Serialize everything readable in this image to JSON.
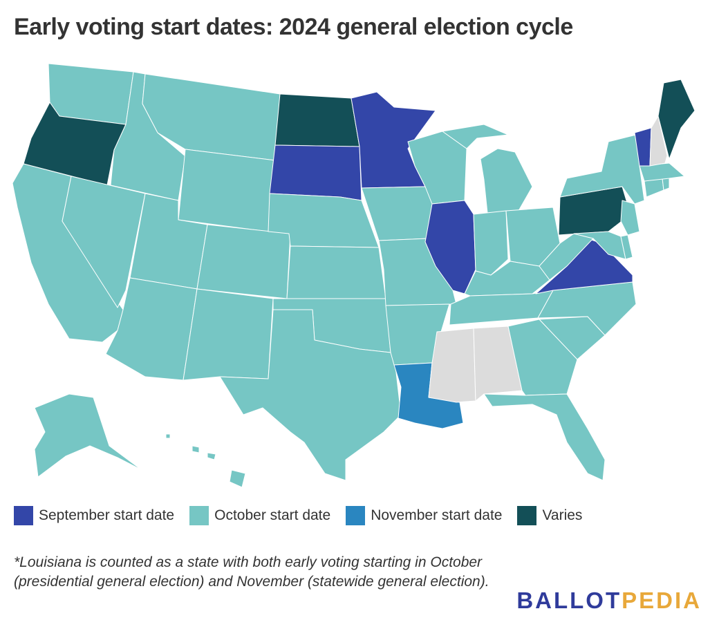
{
  "title": "Early voting start dates: 2024 general election cycle",
  "colors": {
    "september": "#3346a8",
    "october": "#76c6c4",
    "november": "#2a86c0",
    "varies": "#134f57",
    "no_early_voting": "#dcdcdc",
    "border": "#ffffff"
  },
  "legend": [
    {
      "label": "September start date",
      "category": "september"
    },
    {
      "label": "October start date",
      "category": "october"
    },
    {
      "label": "November start date",
      "category": "november"
    },
    {
      "label": "Varies",
      "category": "varies"
    }
  ],
  "states": {
    "september": [
      "MN",
      "SD",
      "IL",
      "VA",
      "VT"
    ],
    "october": [
      "WA",
      "CA",
      "NV",
      "ID",
      "MT",
      "WY",
      "UT",
      "AZ",
      "CO",
      "NM",
      "NE",
      "KS",
      "OK",
      "TX",
      "IA",
      "MO",
      "AR",
      "WI",
      "MI",
      "IN",
      "OH",
      "KY",
      "TN",
      "WV",
      "MD",
      "DE",
      "NJ",
      "NY",
      "CT",
      "RI",
      "MA",
      "NC",
      "SC",
      "GA",
      "FL",
      "AK",
      "HI",
      "DC"
    ],
    "november": [
      "LA"
    ],
    "varies": [
      "OR",
      "ND",
      "PA",
      "ME"
    ],
    "no_early_voting": [
      "MS",
      "AL",
      "NH"
    ]
  },
  "footnote": "*Louisiana is counted as a state with both early voting starting in October (presidential general election) and November (statewide general election).",
  "brand": {
    "part1": "BALLOT",
    "part2": "PEDIA"
  }
}
